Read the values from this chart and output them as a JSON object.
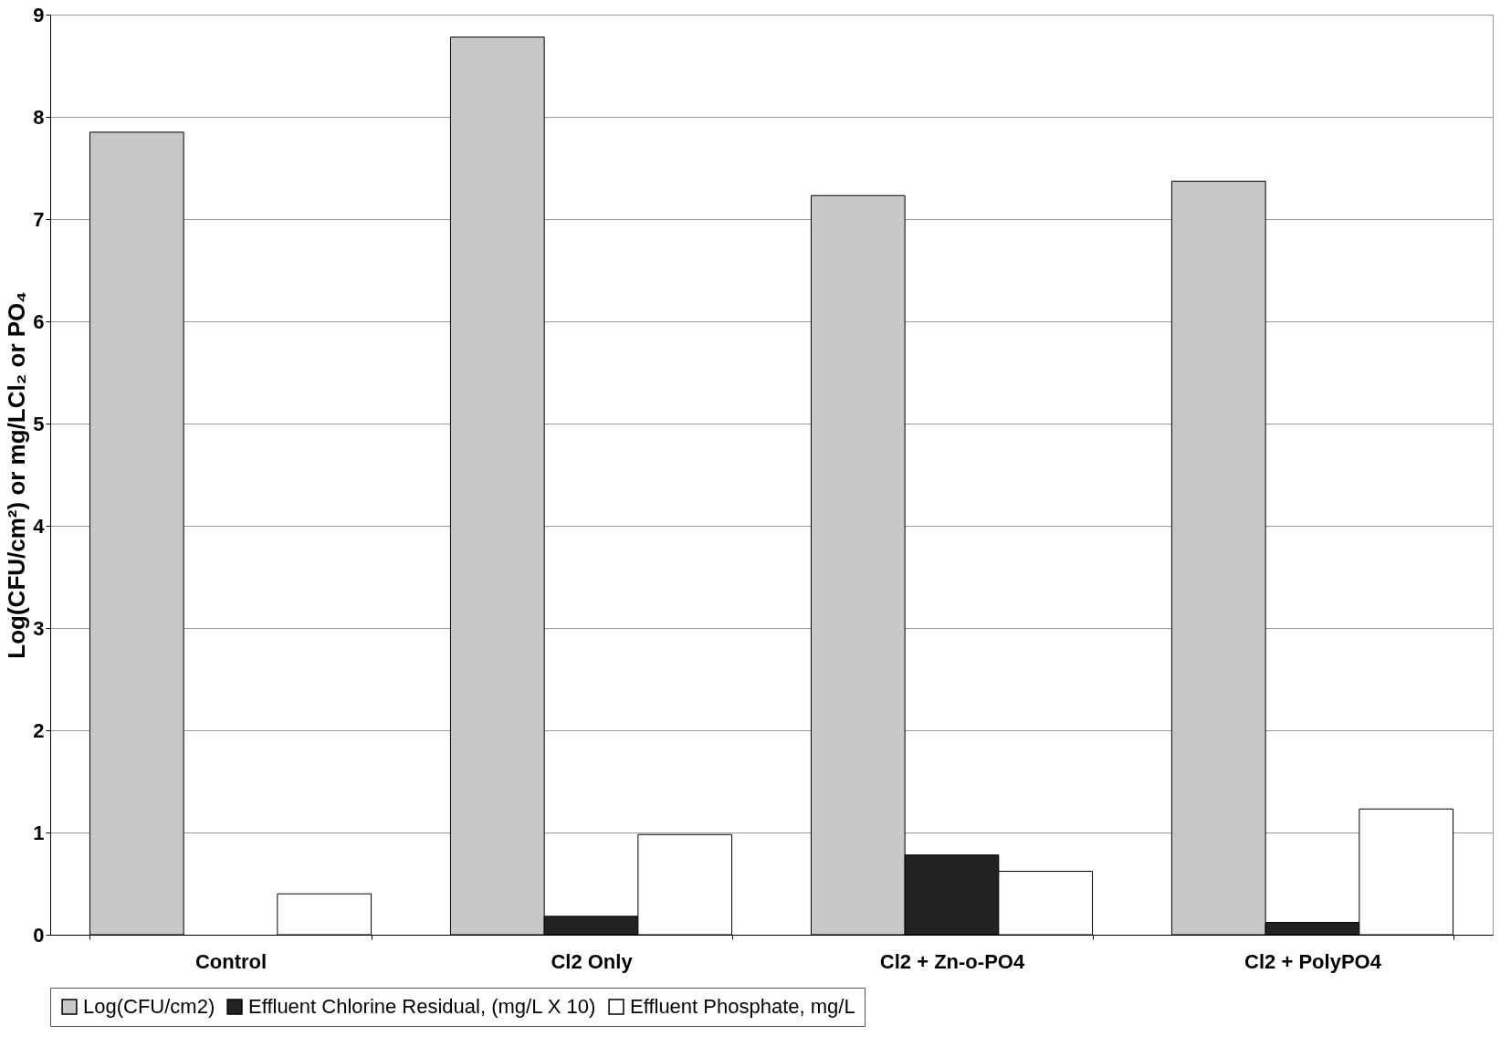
{
  "chart_data": {
    "type": "bar",
    "ylabel": "Log(CFU/cm²) or mg/LCl₂ or PO₄",
    "categories": [
      "Control",
      "Cl2 Only",
      "Cl2 + Zn-o-PO4",
      "Cl2 + PolyPO4"
    ],
    "series": [
      {
        "name": "Log(CFU/cm2)",
        "color": "#c8c8c8",
        "values": [
          7.85,
          8.78,
          7.23,
          7.37
        ]
      },
      {
        "name": "Effluent Chlorine Residual, (mg/L X 10)",
        "color": "#222222",
        "values": [
          null,
          0.18,
          0.78,
          0.12
        ]
      },
      {
        "name": "Effluent Phosphate, mg/L",
        "color": "#ffffff",
        "values": [
          0.4,
          0.98,
          0.62,
          1.23
        ]
      }
    ],
    "ylim": [
      0,
      9
    ],
    "yticks": [
      0,
      1,
      2,
      3,
      4,
      5,
      6,
      7,
      8,
      9
    ],
    "grid": "y",
    "legend": "bottom"
  }
}
